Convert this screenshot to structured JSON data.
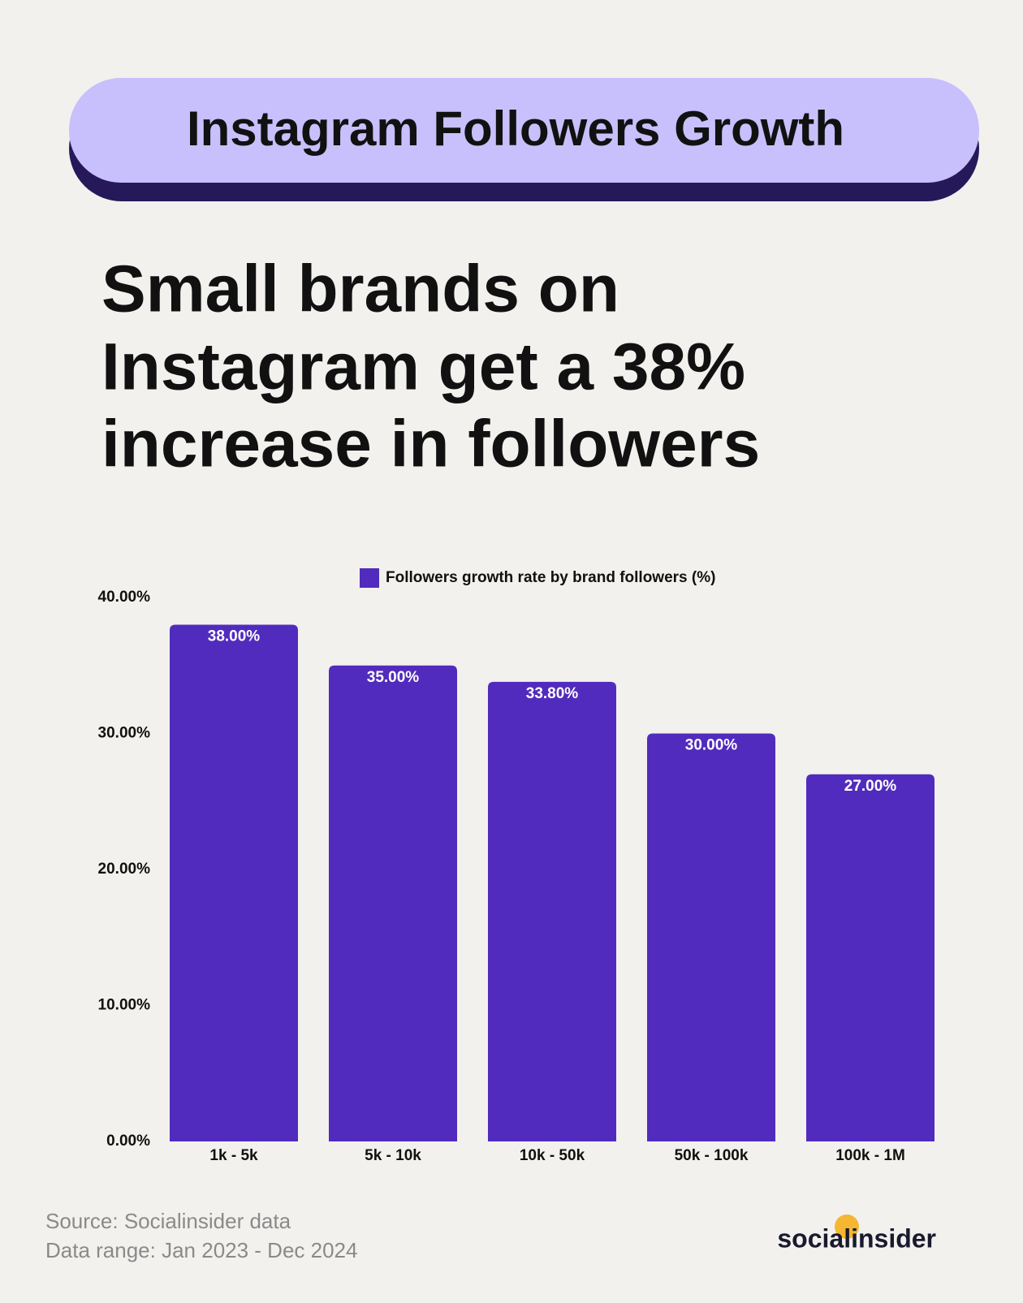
{
  "chart_data": {
    "type": "bar",
    "title": "Instagram Followers Growth",
    "subtitle": [
      "Small brands on",
      "Instagram get a 38%",
      "increase in followers"
    ],
    "categories": [
      "1k - 5k",
      "5k - 10k",
      "10k - 50k",
      "50k - 100k",
      "100k - 1M"
    ],
    "series": [
      {
        "name": "Followers growth rate by brand followers (%)",
        "color": "#512bbd",
        "values": [
          38,
          35,
          33.8,
          30,
          27
        ],
        "value_labels": [
          "38.00%",
          "35.00%",
          "33.80%",
          "30.00%",
          "27.00%"
        ]
      }
    ],
    "ylim": [
      0,
      40
    ],
    "yticks": [
      {
        "value": 0,
        "label": "0.00%"
      },
      {
        "value": 10,
        "label": "10.00%"
      },
      {
        "value": 20,
        "label": "20.00%"
      },
      {
        "value": 30,
        "label": "30.00%"
      },
      {
        "value": 40,
        "label": "40.00%"
      }
    ],
    "grid": false,
    "notes": [
      "Source: Socialinsider data",
      "Data range: Jan 2023 - Dec 2024"
    ],
    "logo": "socialinsider"
  }
}
